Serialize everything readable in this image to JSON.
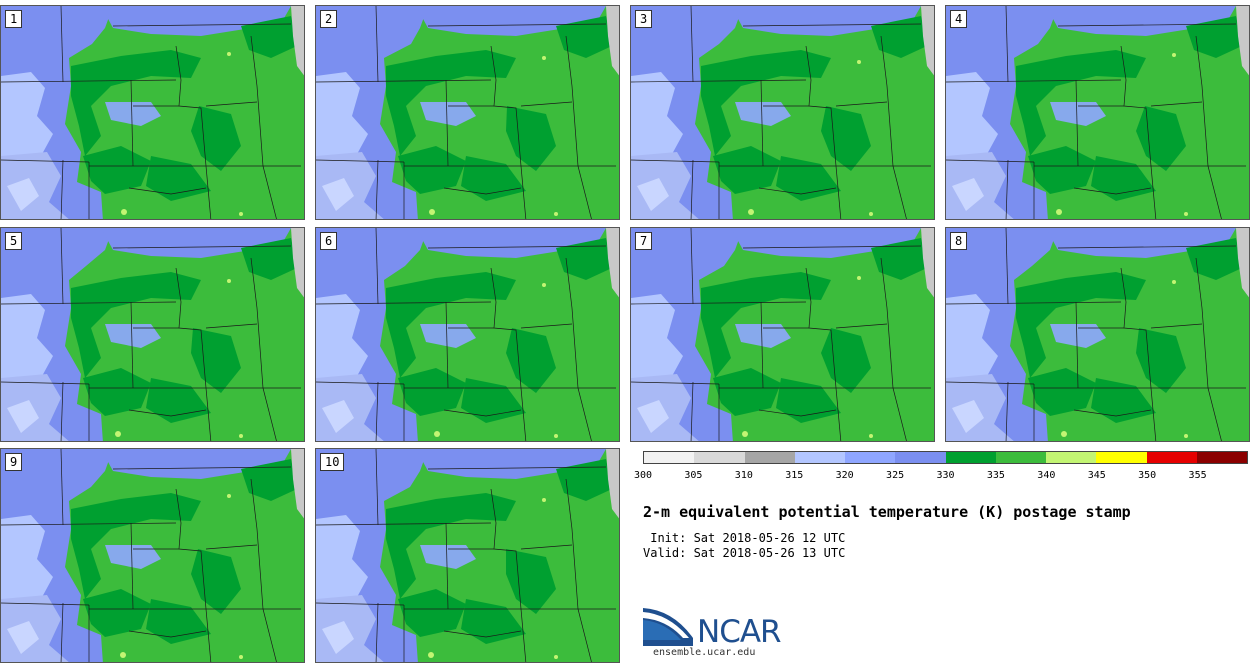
{
  "panels": [
    {
      "label": "1"
    },
    {
      "label": "2"
    },
    {
      "label": "3"
    },
    {
      "label": "4"
    },
    {
      "label": "5"
    },
    {
      "label": "6"
    },
    {
      "label": "7"
    },
    {
      "label": "8"
    },
    {
      "label": "9"
    },
    {
      "label": "10"
    }
  ],
  "colorbar": {
    "colors": [
      "#f2f2f2",
      "#d9d9d9",
      "#a6a6a6",
      "#b3c6ff",
      "#8fa6ff",
      "#7b8ff0",
      "#00a030",
      "#3cbc3c",
      "#c3f573",
      "#ffff00",
      "#e60000",
      "#8b0000"
    ],
    "ticks": [
      "300",
      "305",
      "310",
      "315",
      "320",
      "325",
      "330",
      "335",
      "340",
      "345",
      "350",
      "355"
    ]
  },
  "title": "2-m equivalent potential temperature (K) postage stamp",
  "init_text": " Init: Sat 2018-05-26 12 UTC",
  "valid_text": "Valid: Sat 2018-05-26 13 UTC",
  "logo": {
    "name": "NCAR",
    "url": "ensemble.ucar.edu"
  }
}
